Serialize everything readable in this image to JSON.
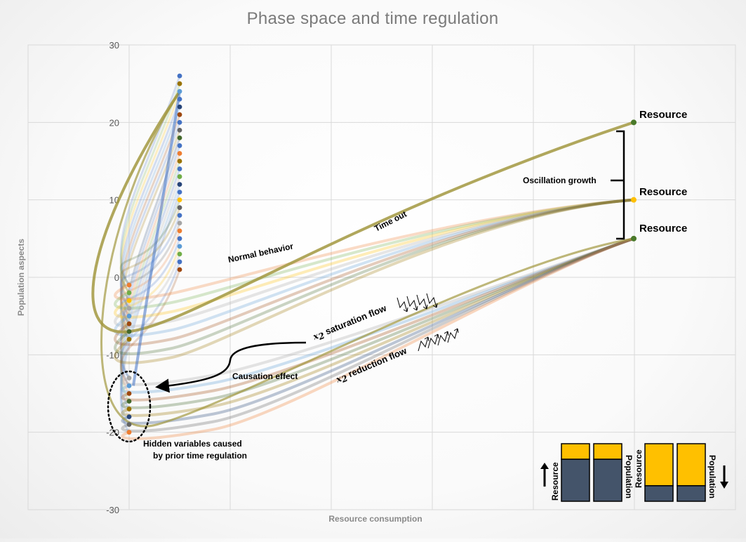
{
  "chart_data": {
    "type": "line",
    "title": "Phase space and time regulation",
    "xlabel": "Resource consumption",
    "ylabel": "Population aspects",
    "ylim": [
      -30,
      30
    ],
    "y_ticks": [
      30,
      20,
      10,
      0,
      -10,
      -20,
      -30
    ],
    "grid": true,
    "legend": "none",
    "resource_endpoints": [
      {
        "label": "Resource",
        "y": 20,
        "color": "#4a7a2a"
      },
      {
        "label": "Resource",
        "y": 10,
        "color": "#ffc000"
      },
      {
        "label": "Resource",
        "y": 5,
        "color": "#4a7a2a"
      }
    ],
    "cluster_upper_start_y": [
      -1,
      -2,
      -3,
      -4,
      -5,
      -6,
      -7,
      -8
    ],
    "cluster_lower_start_y": [
      -13,
      -14,
      -15,
      -16,
      -17,
      -18,
      -19,
      -20
    ],
    "vertical_column_y": [
      26,
      25,
      24,
      23,
      22,
      21,
      20,
      19,
      18,
      17,
      16,
      15,
      14,
      13,
      12,
      11,
      10,
      9,
      8,
      7,
      6,
      5,
      4,
      3,
      2,
      1
    ]
  },
  "annotations": {
    "oscillation_growth": "Oscillation growth",
    "time_out": "Time out",
    "normal_behavior": "Normal behavior",
    "saturation_flow_var": "x",
    "saturation_flow_sub": "2",
    "saturation_flow_text": " saturation flow",
    "reduction_flow_var": "x",
    "reduction_flow_sub": "2",
    "reduction_flow_text": " reduction flow",
    "causation_effect": "Causation effect",
    "hidden_line1": "Hidden variables caused",
    "hidden_line2": "by prior time regulation"
  },
  "inset": {
    "resource_label": "Resource",
    "population_label": "Population",
    "resource_color": "#ffc000",
    "population_color": "#44546a",
    "left_pair_resource_fraction": 0.27,
    "right_pair_resource_fraction": 0.73
  },
  "colors": {
    "palette": [
      "#ed7d31",
      "#70ad47",
      "#ffc000",
      "#a5a5a5",
      "#5b9bd5",
      "#9e480e",
      "#43682b",
      "#997300",
      "#264478",
      "#636363"
    ],
    "trend": "#a29840",
    "blue": "#4472c4"
  }
}
